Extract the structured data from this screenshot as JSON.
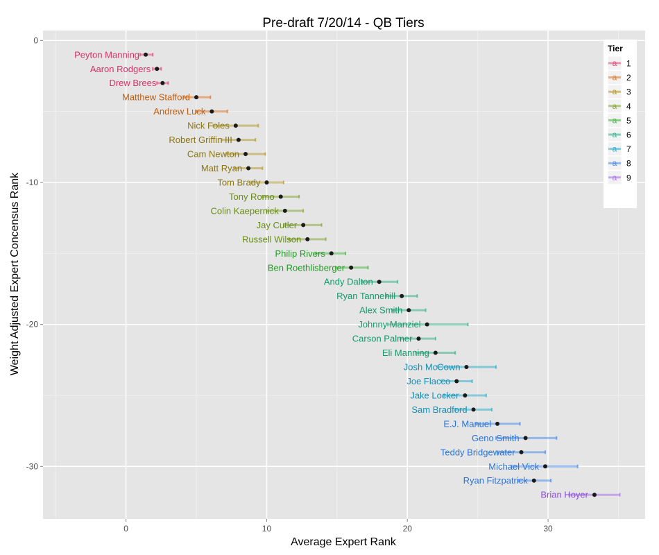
{
  "chart_data": {
    "type": "scatter",
    "title": "Pre-draft 7/20/14 - QB Tiers",
    "xlabel": "Average Expert Rank",
    "ylabel": "Weight Adjusted Expert Concensus Rank",
    "xlim": [
      -5.9,
      36.9
    ],
    "ylim": [
      -33.7,
      0.7
    ],
    "x_ticks": [
      0,
      10,
      20,
      30
    ],
    "y_ticks": [
      0,
      -10,
      -20,
      -30
    ],
    "grid": true,
    "legend": {
      "title": "Tier",
      "position": "top-right",
      "key_glyph": "a",
      "entries": [
        {
          "label": "1",
          "color": "#E5507F"
        },
        {
          "label": "2",
          "color": "#DE7B32"
        },
        {
          "label": "3",
          "color": "#B89C32"
        },
        {
          "label": "4",
          "color": "#89A83A"
        },
        {
          "label": "5",
          "color": "#4FB64B"
        },
        {
          "label": "6",
          "color": "#3DB590"
        },
        {
          "label": "7",
          "color": "#34B0CE"
        },
        {
          "label": "8",
          "color": "#4C8FE9"
        },
        {
          "label": "9",
          "color": "#AD75E8"
        }
      ]
    },
    "label_colors": {
      "1": "#D8306A",
      "2": "#C35D10",
      "3": "#8C7610",
      "4": "#678D14",
      "5": "#1F9A22",
      "6": "#13996B",
      "7": "#168FB4",
      "8": "#2A74D8",
      "9": "#8A4FD6"
    },
    "points": [
      {
        "name": "Peyton Manning",
        "tier": 1,
        "x": 1.4,
        "y": -1,
        "lo": 1.0,
        "hi": 1.9
      },
      {
        "name": "Aaron Rodgers",
        "tier": 1,
        "x": 2.2,
        "y": -2,
        "lo": 1.9,
        "hi": 2.5
      },
      {
        "name": "Drew Brees",
        "tier": 1,
        "x": 2.6,
        "y": -3,
        "lo": 2.2,
        "hi": 3.0
      },
      {
        "name": "Matthew Stafford",
        "tier": 2,
        "x": 5.0,
        "y": -4,
        "lo": 4.1,
        "hi": 6.0
      },
      {
        "name": "Andrew Luck",
        "tier": 2,
        "x": 6.1,
        "y": -5,
        "lo": 5.0,
        "hi": 7.2
      },
      {
        "name": "Nick Foles",
        "tier": 3,
        "x": 7.8,
        "y": -6,
        "lo": 6.2,
        "hi": 9.4
      },
      {
        "name": "Robert Griffin III",
        "tier": 3,
        "x": 8.0,
        "y": -7,
        "lo": 6.8,
        "hi": 9.2
      },
      {
        "name": "Cam Newton",
        "tier": 3,
        "x": 8.5,
        "y": -8,
        "lo": 7.1,
        "hi": 9.9
      },
      {
        "name": "Matt Ryan",
        "tier": 3,
        "x": 8.7,
        "y": -9,
        "lo": 7.7,
        "hi": 9.7
      },
      {
        "name": "Tom Brady",
        "tier": 3,
        "x": 10.0,
        "y": -10,
        "lo": 8.9,
        "hi": 11.2
      },
      {
        "name": "Tony Romo",
        "tier": 4,
        "x": 11.0,
        "y": -11,
        "lo": 9.7,
        "hi": 12.3
      },
      {
        "name": "Colin Kaepernick",
        "tier": 4,
        "x": 11.3,
        "y": -12,
        "lo": 10.0,
        "hi": 12.6
      },
      {
        "name": "Jay Cutler",
        "tier": 4,
        "x": 12.6,
        "y": -13,
        "lo": 11.3,
        "hi": 13.9
      },
      {
        "name": "Russell Wilson",
        "tier": 4,
        "x": 12.9,
        "y": -14,
        "lo": 11.6,
        "hi": 14.2
      },
      {
        "name": "Philip Rivers",
        "tier": 5,
        "x": 14.6,
        "y": -15,
        "lo": 13.5,
        "hi": 15.6
      },
      {
        "name": "Ben Roethlisberger",
        "tier": 5,
        "x": 16.0,
        "y": -16,
        "lo": 14.9,
        "hi": 17.2
      },
      {
        "name": "Andy Dalton",
        "tier": 6,
        "x": 18.0,
        "y": -17,
        "lo": 16.8,
        "hi": 19.3
      },
      {
        "name": "Ryan Tannehill",
        "tier": 6,
        "x": 19.6,
        "y": -18,
        "lo": 18.5,
        "hi": 20.7
      },
      {
        "name": "Alex Smith",
        "tier": 6,
        "x": 20.1,
        "y": -19,
        "lo": 18.9,
        "hi": 21.3
      },
      {
        "name": "Johnny Manziel",
        "tier": 6,
        "x": 21.4,
        "y": -20,
        "lo": 18.6,
        "hi": 24.3
      },
      {
        "name": "Carson Palmer",
        "tier": 6,
        "x": 20.8,
        "y": -21,
        "lo": 19.5,
        "hi": 22.0
      },
      {
        "name": "Eli Manning",
        "tier": 6,
        "x": 22.0,
        "y": -22,
        "lo": 20.6,
        "hi": 23.4
      },
      {
        "name": "Josh McCown",
        "tier": 7,
        "x": 24.2,
        "y": -23,
        "lo": 22.1,
        "hi": 26.3
      },
      {
        "name": "Joe Flacco",
        "tier": 7,
        "x": 23.5,
        "y": -24,
        "lo": 22.4,
        "hi": 24.6
      },
      {
        "name": "Jake Locker",
        "tier": 7,
        "x": 24.1,
        "y": -25,
        "lo": 22.6,
        "hi": 25.6
      },
      {
        "name": "Sam Bradford",
        "tier": 7,
        "x": 24.7,
        "y": -26,
        "lo": 23.4,
        "hi": 26.0
      },
      {
        "name": "E.J. Manuel",
        "tier": 8,
        "x": 26.4,
        "y": -27,
        "lo": 24.9,
        "hi": 28.0
      },
      {
        "name": "Geno Smith",
        "tier": 8,
        "x": 28.4,
        "y": -28,
        "lo": 26.3,
        "hi": 30.6
      },
      {
        "name": "Teddy Bridgewater",
        "tier": 8,
        "x": 28.1,
        "y": -29,
        "lo": 26.4,
        "hi": 29.8
      },
      {
        "name": "Michael Vick",
        "tier": 8,
        "x": 29.8,
        "y": -30,
        "lo": 27.4,
        "hi": 32.1
      },
      {
        "name": "Ryan Fitzpatrick",
        "tier": 8,
        "x": 29.0,
        "y": -31,
        "lo": 27.9,
        "hi": 30.2
      },
      {
        "name": "Brian Hoyer",
        "tier": 9,
        "x": 33.3,
        "y": -32,
        "lo": 31.5,
        "hi": 35.1
      }
    ]
  }
}
